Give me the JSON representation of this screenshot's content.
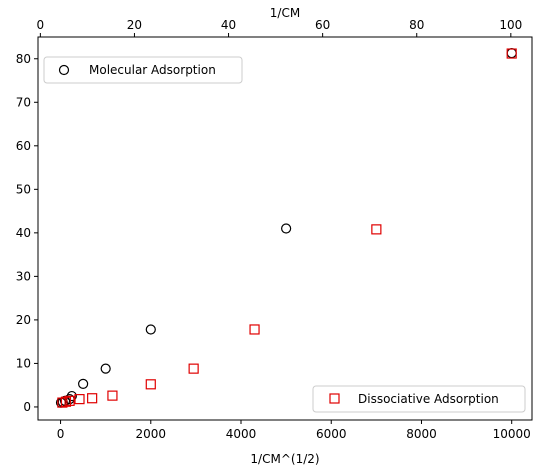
{
  "chart_data": {
    "type": "scatter",
    "bottom_axis": {
      "label": "1/CM^(1/2)",
      "range": [
        -500,
        10450
      ],
      "ticks": [
        0,
        2000,
        4000,
        6000,
        8000,
        10000
      ]
    },
    "top_axis": {
      "label": "1/CM",
      "range": [
        -0.5,
        104.5
      ],
      "ticks": [
        0,
        20,
        40,
        60,
        80,
        100
      ]
    },
    "y_axis": {
      "label": "",
      "range": [
        -3,
        85
      ],
      "ticks": [
        0,
        10,
        20,
        30,
        40,
        50,
        60,
        70,
        80
      ]
    },
    "series": [
      {
        "name": "Molecular Adsorption",
        "marker": "circle",
        "color": "#000000",
        "x_axis": "bottom",
        "points": [
          {
            "x": 10,
            "y": 1.0
          },
          {
            "x": 50,
            "y": 1.1
          },
          {
            "x": 100,
            "y": 1.4
          },
          {
            "x": 200,
            "y": 1.8
          },
          {
            "x": 250,
            "y": 2.5
          },
          {
            "x": 500,
            "y": 5.3
          },
          {
            "x": 1000,
            "y": 8.8
          },
          {
            "x": 2000,
            "y": 17.8
          },
          {
            "x": 5000,
            "y": 41.0
          },
          {
            "x": 10000,
            "y": 81.3
          }
        ],
        "legend_position": "upper left"
      },
      {
        "name": "Dissociative Adsorption",
        "marker": "square",
        "color": "#e00000",
        "x_axis": "bottom",
        "points": [
          {
            "x": 40,
            "y": 1.0
          },
          {
            "x": 120,
            "y": 1.2
          },
          {
            "x": 200,
            "y": 1.4
          },
          {
            "x": 420,
            "y": 1.8
          },
          {
            "x": 700,
            "y": 2.0
          },
          {
            "x": 1150,
            "y": 2.6
          },
          {
            "x": 2000,
            "y": 5.2
          },
          {
            "x": 2950,
            "y": 8.8
          },
          {
            "x": 4300,
            "y": 17.8
          },
          {
            "x": 7000,
            "y": 40.8
          },
          {
            "x": 10000,
            "y": 81.2
          }
        ],
        "legend_position": "lower right"
      }
    ],
    "grid": false
  }
}
